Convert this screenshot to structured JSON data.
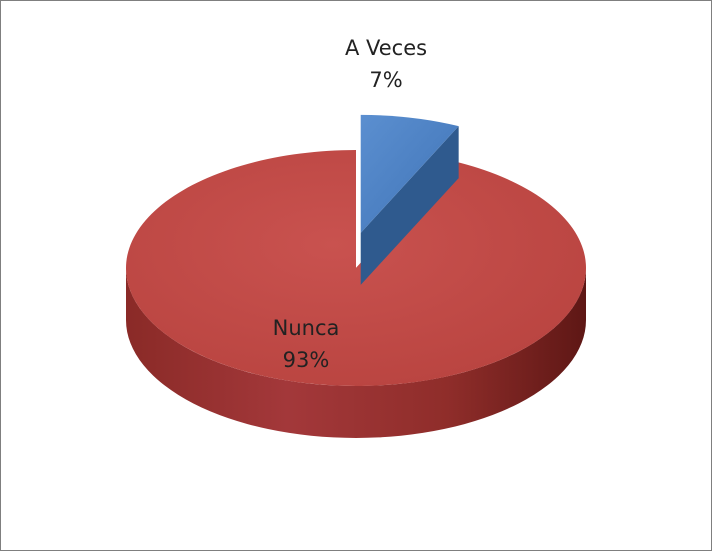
{
  "chart_data": {
    "type": "pie",
    "style": "3d-exploded",
    "title": "",
    "legend": "none",
    "slices": [
      {
        "label": "A Veces",
        "value": 7,
        "percent_label": "7%",
        "color": "#4f81bd",
        "exploded": true
      },
      {
        "label": "Nunca",
        "value": 93,
        "percent_label": "93%",
        "color": "#c0504d",
        "exploded": false
      }
    ]
  }
}
